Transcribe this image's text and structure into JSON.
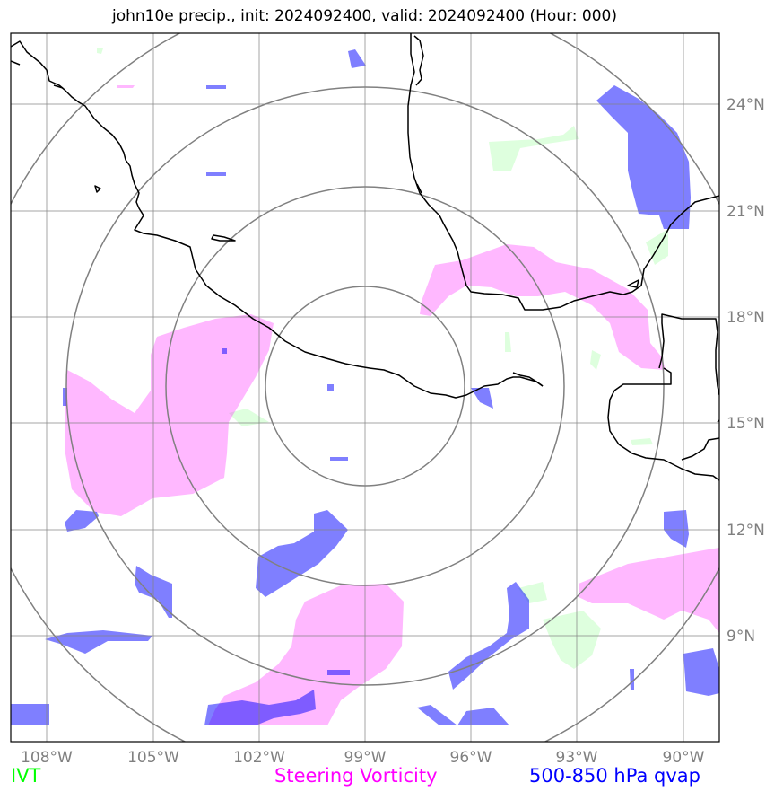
{
  "title": "john10e precip., init: 2024092400, valid: 2024092400 (Hour: 000)",
  "legend": {
    "ivt": "IVT",
    "vorticity": "Steering Vorticity",
    "qvap": "500-850 hPa qvap"
  },
  "colors": {
    "ivt": "#00ff00",
    "vorticity": "#ff00ff",
    "qvap": "#0000ff",
    "grid": "#808080",
    "coast": "#000000"
  },
  "axes": {
    "lat_labels": [
      "24°N",
      "21°N",
      "18°N",
      "15°N",
      "12°N",
      "9°N"
    ],
    "lon_labels": [
      "108°W",
      "105°W",
      "102°W",
      "99°W",
      "96°W",
      "93°W",
      "90°W"
    ]
  },
  "range_rings_center": "15.9°N 99°W"
}
